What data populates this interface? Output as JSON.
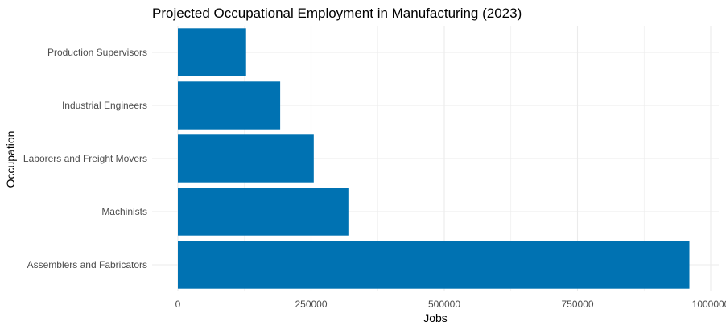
{
  "chart_data": {
    "type": "bar",
    "orientation": "horizontal",
    "title": "Projected Occupational Employment in Manufacturing (2023)",
    "xlabel": "Jobs",
    "ylabel": "Occupation",
    "categories": [
      "Assemblers and Fabricators",
      "Machinists",
      "Laborers and Freight Movers",
      "Industrial Engineers",
      "Production Supervisors"
    ],
    "values": [
      960000,
      320000,
      255000,
      192000,
      128000
    ],
    "xlim": [
      0,
      1000000
    ],
    "x_ticks": [
      0,
      250000,
      500000,
      750000,
      1000000
    ],
    "x_tick_labels": [
      "0",
      "250000",
      "500000",
      "750000",
      "1000000"
    ],
    "grid": true,
    "bar_color": "#0072B2",
    "grid_color": "#ebebeb"
  }
}
